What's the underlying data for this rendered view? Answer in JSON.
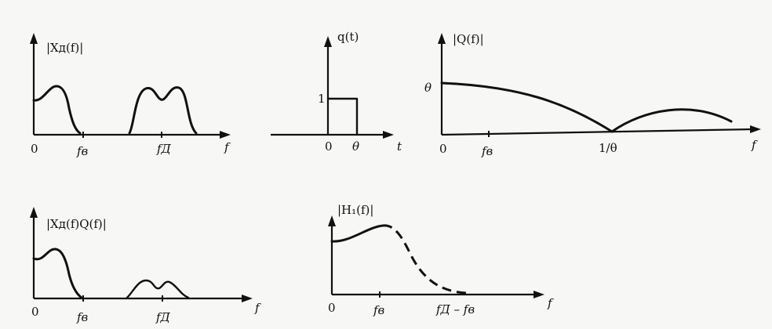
{
  "panels": {
    "xd": {
      "ylabel": "|Xд(f)|",
      "zero": "0",
      "fv": "fв",
      "fd": "fД",
      "faxis": "f"
    },
    "q": {
      "ylabel": "q(t)",
      "one": "1",
      "zero": "0",
      "theta": "θ",
      "taxis": "t"
    },
    "Q": {
      "ylabel": "|Q(f)|",
      "theta": "θ",
      "zero": "0",
      "fv": "fв",
      "inv": "1/θ",
      "faxis": "f"
    },
    "xq": {
      "ylabel": "|Xд(f)Q(f)|",
      "zero": "0",
      "fv": "fв",
      "fd": "fД",
      "faxis": "f"
    },
    "h1": {
      "ylabel": "|H₁(f)|",
      "zero": "0",
      "fv": "fв",
      "fdiff": "fД – fв",
      "faxis": "f"
    }
  }
}
